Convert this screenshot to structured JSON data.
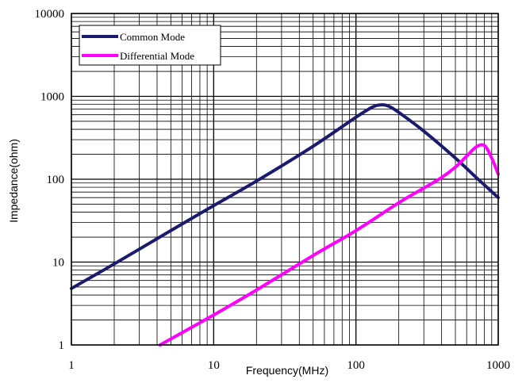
{
  "chart_data": {
    "type": "line",
    "xscale": "log",
    "yscale": "log",
    "xlabel": "Frequency(MHz)",
    "ylabel": "Impedance(ohm)",
    "xlim": [
      1,
      1000
    ],
    "ylim": [
      1,
      10000
    ],
    "x_ticks": [
      1,
      10,
      100,
      1000
    ],
    "y_ticks": [
      1,
      10,
      100,
      1000,
      10000
    ],
    "grid": true,
    "legend_position": "top-left",
    "series": [
      {
        "name": "Common Mode",
        "color": "#1a1a6e",
        "x": [
          1,
          2,
          5,
          10,
          20,
          50,
          100,
          130,
          150,
          170,
          200,
          300,
          500,
          700,
          1000
        ],
        "y": [
          4.8,
          9.5,
          24,
          48,
          95,
          250,
          560,
          740,
          790,
          760,
          640,
          380,
          180,
          105,
          60
        ]
      },
      {
        "name": "Differential Mode",
        "color": "#ff00ff",
        "x": [
          4.2,
          10,
          20,
          50,
          100,
          200,
          300,
          400,
          500,
          600,
          700,
          800,
          900,
          1000
        ],
        "y": [
          1,
          2.3,
          4.6,
          12,
          24,
          52,
          78,
          105,
          140,
          190,
          245,
          255,
          180,
          115
        ]
      }
    ]
  }
}
